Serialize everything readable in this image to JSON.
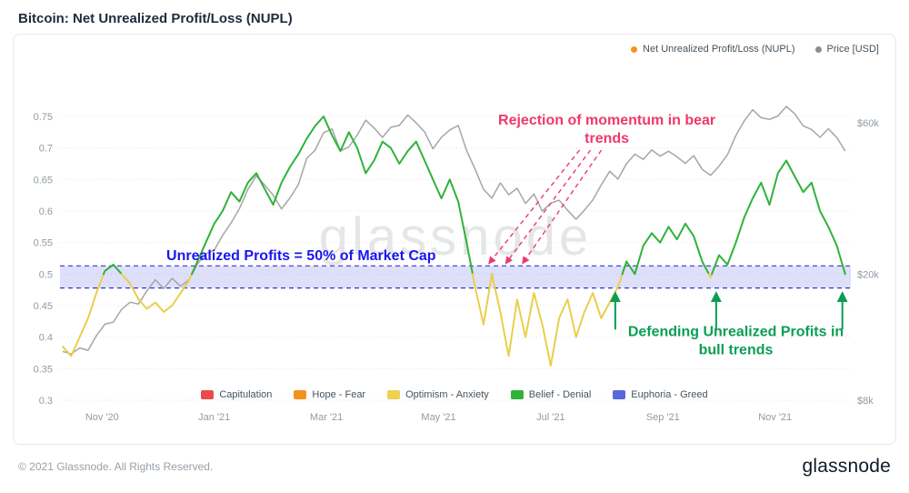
{
  "page": {
    "title": "Bitcoin: Net Unrealized Profit/Loss (NUPL)",
    "watermark": "glassnode"
  },
  "footer": {
    "copyright": "© 2021 Glassnode. All Rights Reserved.",
    "logo": "glassnode"
  },
  "legend_top": {
    "items": [
      {
        "label": "Net Unrealized Profit/Loss (NUPL)",
        "color": "#f7931a"
      },
      {
        "label": "Price [USD]",
        "color": "#8c8c8c"
      }
    ]
  },
  "legend_zones": {
    "items": [
      {
        "label": "Capitulation",
        "color": "#ea4b4b"
      },
      {
        "label": "Hope - Fear",
        "color": "#f5921e"
      },
      {
        "label": "Optimism - Anxiety",
        "color": "#ecd24e"
      },
      {
        "label": "Belief - Denial",
        "color": "#2fb339"
      },
      {
        "label": "Euphoria - Greed",
        "color": "#5868dd"
      }
    ]
  },
  "chart_data": {
    "type": "line",
    "title": "Bitcoin: Net Unrealized Profit/Loss (NUPL)",
    "x_axis": {
      "unit": "months_since_2020-11-01",
      "start": -0.7,
      "step": 0.15,
      "ticks": [
        {
          "m": 0,
          "label": "Nov '20"
        },
        {
          "m": 2,
          "label": "Jan '21"
        },
        {
          "m": 4,
          "label": "Mar '21"
        },
        {
          "m": 6,
          "label": "May '21"
        },
        {
          "m": 8,
          "label": "Jul '21"
        },
        {
          "m": 10,
          "label": "Sep '21"
        },
        {
          "m": 12,
          "label": "Nov '21"
        }
      ]
    },
    "y_left": {
      "label": "NUPL",
      "min": 0.3,
      "max": 0.75,
      "tick_values": [
        0.75,
        0.7,
        0.65,
        0.6,
        0.55,
        0.5,
        0.45,
        0.4,
        0.35,
        0.3
      ],
      "tick_labels": [
        "0.75",
        "0.7",
        "0.65",
        "0.6",
        "0.55",
        "0.5",
        "0.45",
        "0.4",
        "0.35",
        "0.3"
      ],
      "grid": "dotted"
    },
    "y_right": {
      "label": "Price [USD]",
      "scale": "log",
      "ticks": [
        {
          "v": 60,
          "label": "$60k"
        },
        {
          "v": 20,
          "label": "$20k"
        },
        {
          "v": 8,
          "label": "$8k"
        }
      ]
    },
    "band": {
      "v_from": 0.478,
      "v_to": 0.513,
      "fill": "#6470e0",
      "fill_opacity": 0.22,
      "border_color": "#3434cf"
    },
    "series": [
      {
        "name": "Net Unrealized Profit/Loss (NUPL)",
        "threshold": 0.5,
        "color_above": "#2fb339",
        "color_below": "#e9cf4a",
        "values": [
          0.385,
          0.37,
          0.4,
          0.43,
          0.47,
          0.505,
          0.515,
          0.5,
          0.485,
          0.46,
          0.445,
          0.455,
          0.44,
          0.45,
          0.47,
          0.49,
          0.52,
          0.55,
          0.58,
          0.6,
          0.63,
          0.615,
          0.645,
          0.66,
          0.635,
          0.61,
          0.645,
          0.67,
          0.69,
          0.715,
          0.735,
          0.75,
          0.72,
          0.695,
          0.725,
          0.7,
          0.66,
          0.68,
          0.71,
          0.7,
          0.675,
          0.695,
          0.71,
          0.68,
          0.65,
          0.62,
          0.65,
          0.615,
          0.55,
          0.48,
          0.42,
          0.5,
          0.44,
          0.37,
          0.46,
          0.4,
          0.47,
          0.42,
          0.355,
          0.43,
          0.46,
          0.4,
          0.44,
          0.47,
          0.43,
          0.455,
          0.48,
          0.52,
          0.5,
          0.545,
          0.565,
          0.55,
          0.575,
          0.555,
          0.58,
          0.56,
          0.52,
          0.495,
          0.53,
          0.515,
          0.55,
          0.59,
          0.62,
          0.645,
          0.61,
          0.66,
          0.68,
          0.655,
          0.63,
          0.645,
          0.6,
          0.575,
          0.545,
          0.5
        ]
      },
      {
        "name": "Price [USD]",
        "unit": "kUSD",
        "color": "#a6a6a6",
        "values": [
          11.4,
          11.2,
          11.7,
          11.5,
          12.8,
          13.9,
          14.1,
          15.5,
          16.3,
          16.1,
          17.7,
          19.2,
          18.0,
          19.4,
          18.3,
          19.2,
          21.5,
          23.2,
          23.8,
          26.5,
          29.0,
          32.2,
          37.0,
          40.8,
          38.2,
          35.5,
          32.1,
          34.8,
          38.3,
          46.4,
          49.2,
          55.9,
          57.4,
          48.9,
          50.4,
          54.9,
          61.2,
          57.8,
          54.0,
          58.1,
          58.9,
          63.5,
          60.0,
          56.2,
          49.7,
          54.0,
          57.0,
          58.9,
          49.1,
          42.9,
          37.0,
          34.7,
          38.8,
          35.6,
          37.3,
          33.4,
          35.8,
          31.6,
          33.5,
          34.2,
          31.8,
          29.8,
          31.8,
          34.3,
          38.2,
          42.2,
          39.9,
          44.6,
          47.8,
          46.0,
          49.3,
          47.1,
          48.8,
          46.9,
          44.7,
          47.3,
          42.8,
          41.0,
          43.8,
          47.6,
          54.7,
          60.9,
          66.0,
          62.3,
          61.5,
          63.1,
          67.6,
          64.1,
          58.7,
          57.2,
          54.0,
          57.5,
          53.9,
          48.9
        ]
      }
    ],
    "annotations": {
      "rejection": {
        "lines": [
          "Rejection of momentum in bear",
          "trends"
        ],
        "color": "#f0386b",
        "text_m": 9.0,
        "text_v": 0.737,
        "targets_m": [
          6.9,
          7.2,
          7.5
        ],
        "target_v": 0.517
      },
      "band_label": {
        "text": "Unrealized Profits = 50% of Market Cap",
        "color": "#1a16f0",
        "m": 3.55,
        "v": 0.522
      },
      "defending": {
        "lines": [
          "Defending Unrealized Profits in",
          "bull trends"
        ],
        "color": "#0a9e53",
        "text_m": 11.3,
        "text_v": 0.402,
        "arrows_m": [
          9.15,
          10.95,
          13.2
        ],
        "arrow_from_v": 0.412,
        "arrow_to_v": 0.47
      }
    }
  }
}
